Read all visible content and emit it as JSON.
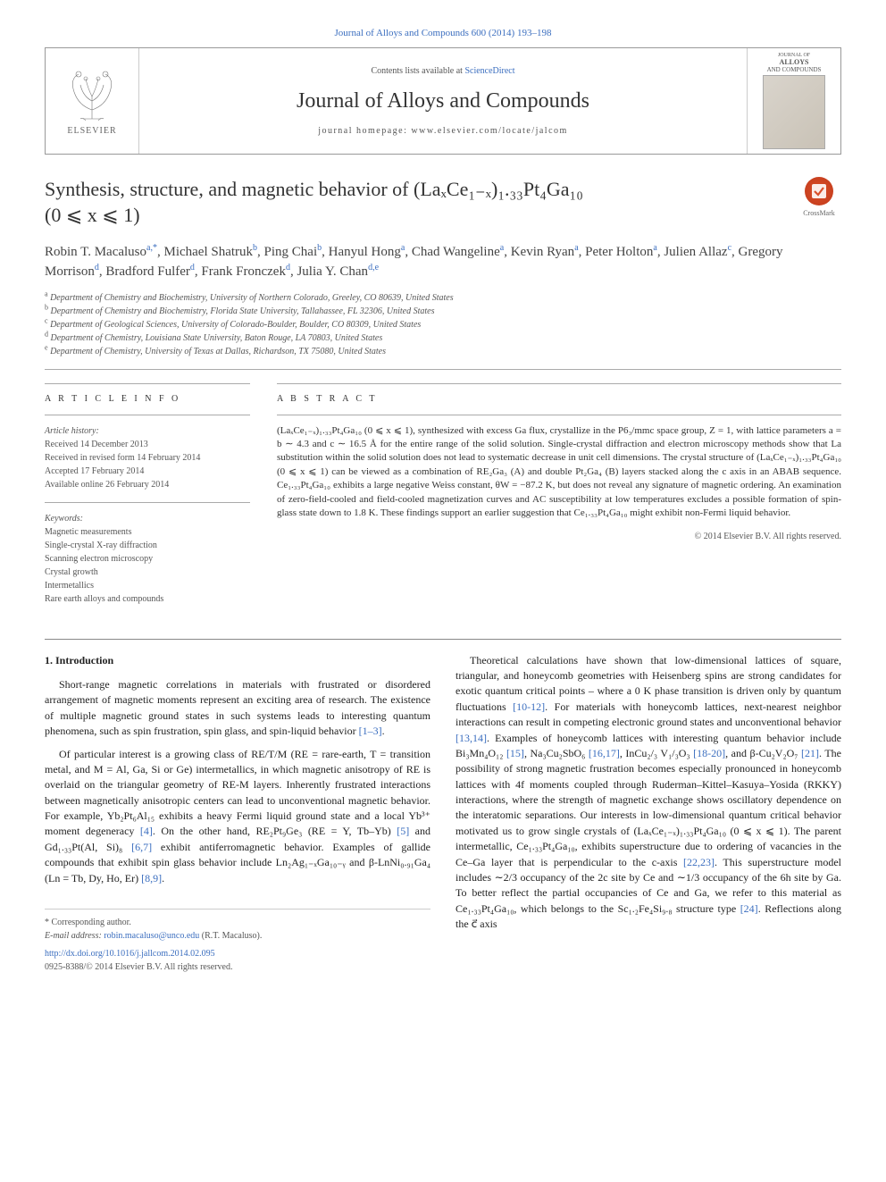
{
  "top_link": "Journal of Alloys and Compounds 600 (2014) 193–198",
  "header": {
    "elsevier": "ELSEVIER",
    "contents_prefix": "Contents lists available at ",
    "contents_link": "ScienceDirect",
    "journal_name": "Journal of Alloys and Compounds",
    "homepage_prefix": "journal homepage: ",
    "homepage_url": "www.elsevier.com/locate/jalcom",
    "cover_label_top": "JOURNAL OF",
    "cover_label_1": "ALLOYS",
    "cover_label_2": "AND COMPOUNDS"
  },
  "crossmark_label": "CrossMark",
  "title_line1": "Synthesis, structure, and magnetic behavior of (LaₓCe₁₋ₓ)₁.₃₃Pt₄Ga₁₀",
  "title_line2": "(0 ⩽ x ⩽ 1)",
  "authors_html": "Robin T. Macaluso<sup>a,*</sup>, Michael Shatruk<sup>b</sup>, Ping Chai<sup>b</sup>, Hanyul Hong<sup>a</sup>, Chad Wangeline<sup>a</sup>, Kevin Ryan<sup>a</sup>, Peter Holton<sup>a</sup>, Julien Allaz<sup>c</sup>, Gregory Morrison<sup>d</sup>, Bradford Fulfer<sup>d</sup>, Frank Fronczek<sup>d</sup>, Julia Y. Chan<sup>d,e</sup>",
  "affiliations": [
    "a Department of Chemistry and Biochemistry, University of Northern Colorado, Greeley, CO 80639, United States",
    "b Department of Chemistry and Biochemistry, Florida State University, Tallahassee, FL 32306, United States",
    "c Department of Geological Sciences, University of Colorado-Boulder, Boulder, CO 80309, United States",
    "d Department of Chemistry, Louisiana State University, Baton Rouge, LA 70803, United States",
    "e Department of Chemistry, University of Texas at Dallas, Richardson, TX 75080, United States"
  ],
  "article_info": {
    "heading": "A R T I C L E   I N F O",
    "history_label": "Article history:",
    "history": [
      "Received 14 December 2013",
      "Received in revised form 14 February 2014",
      "Accepted 17 February 2014",
      "Available online 26 February 2014"
    ],
    "keywords_label": "Keywords:",
    "keywords": [
      "Magnetic measurements",
      "Single-crystal X-ray diffraction",
      "Scanning electron microscopy",
      "Crystal growth",
      "Intermetallics",
      "Rare earth alloys and compounds"
    ]
  },
  "abstract": {
    "heading": "A B S T R A C T",
    "text": "(LaₓCe₁₋ₓ)₁.₃₃Pt₄Ga₁₀ (0 ⩽ x ⩽ 1), synthesized with excess Ga flux, crystallize in the P6₃/mmc space group, Z = 1, with lattice parameters a = b ∼ 4.3 and c ∼ 16.5 Å for the entire range of the solid solution. Single-crystal diffraction and electron microscopy methods show that La substitution within the solid solution does not lead to systematic decrease in unit cell dimensions. The crystal structure of (LaₓCe₁₋ₓ)₁.₃₃Pt₄Ga₁₀ (0 ⩽ x ⩽ 1) can be viewed as a combination of RE₂Ga₃ (A) and double Pt₂Ga₄ (B) layers stacked along the c axis in an ABAB sequence. Ce₁.₃₃Pt₄Ga₁₀ exhibits a large negative Weiss constant, θW = −87.2 K, but does not reveal any signature of magnetic ordering. An examination of zero-field-cooled and field-cooled magnetization curves and AC susceptibility at low temperatures excludes a possible formation of spin-glass state down to 1.8 K. These findings support an earlier suggestion that Ce₁.₃₃Pt₄Ga₁₀ might exhibit non-Fermi liquid behavior.",
    "copyright": "© 2014 Elsevier B.V. All rights reserved."
  },
  "intro_heading": "1. Introduction",
  "col1": {
    "p1": "Short-range magnetic correlations in materials with frustrated or disordered arrangement of magnetic moments represent an exciting area of research. The existence of multiple magnetic ground states in such systems leads to interesting quantum phenomena, such as spin frustration, spin glass, and spin-liquid behavior [1–3].",
    "p2": "Of particular interest is a growing class of RE/T/M (RE = rare-earth, T = transition metal, and M = Al, Ga, Si or Ge) intermetallics, in which magnetic anisotropy of RE is overlaid on the triangular geometry of RE-M layers. Inherently frustrated interactions between magnetically anisotropic centers can lead to unconventional magnetic behavior. For example, Yb₂Pt₆Al₁₅ exhibits a heavy Fermi liquid ground state and a local Yb³⁺ moment degeneracy [4]. On the other hand, RE₂Pt₉Ge₃ (RE = Y, Tb–Yb) [5] and Gd₁.₃₃Pt(Al, Si)₈ [6,7] exhibit antiferromagnetic behavior. Examples of gallide compounds that exhibit spin glass behavior include Ln₂Ag₁₋ₓGa₁₀₋ᵧ and β-LnNi₀.₉₁Ga₄ (Ln = Tb, Dy, Ho, Er) [8,9]."
  },
  "col2": {
    "p1": "Theoretical calculations have shown that low-dimensional lattices of square, triangular, and honeycomb geometries with Heisenberg spins are strong candidates for exotic quantum critical points – where a 0 K phase transition is driven only by quantum fluctuations [10-12]. For materials with honeycomb lattices, next-nearest neighbor interactions can result in competing electronic ground states and unconventional behavior [13,14]. Examples of honeycomb lattices with interesting quantum behavior include Bi₃Mn₄O₁₂ [15], Na₃Cu₂SbO₆ [16,17], InCu₂/₃ V₁/₃O₃ [18-20], and β-Cu₂V₂O₇ [21]. The possibility of strong magnetic frustration becomes especially pronounced in honeycomb lattices with 4f moments coupled through Ruderman–Kittel–Kasuya–Yosida (RKKY) interactions, where the strength of magnetic exchange shows oscillatory dependence on the interatomic separations. Our interests in low-dimensional quantum critical behavior motivated us to grow single crystals of (LaₓCe₁₋ₓ)₁.₃₃Pt₄Ga₁₀ (0 ⩽ x ⩽ 1). The parent intermetallic, Ce₁.₃₃Pt₄Ga₁₀, exhibits superstructure due to ordering of vacancies in the Ce–Ga layer that is perpendicular to the c-axis [22,23]. This superstructure model includes ∼2/3 occupancy of the 2c site by Ce and ∼1/3 occupancy of the 6h site by Ga. To better reflect the partial occupancies of Ce and Ga, we refer to this material as Ce₁.₃₃Pt₄Ga₁₀, which belongs to the Sc₁.₂Fe₄Si₉.₈ structure type [24]. Reflections along the c⃗ axis"
  },
  "footer": {
    "corresponding_label": "* Corresponding author.",
    "email_label": "E-mail address: ",
    "email": "robin.macaluso@unco.edu",
    "email_suffix": " (R.T. Macaluso).",
    "doi": "http://dx.doi.org/10.1016/j.jallcom.2014.02.095",
    "issn_line": "0925-8388/© 2014 Elsevier B.V. All rights reserved."
  },
  "colors": {
    "link": "#3b6ebf",
    "text": "#222222",
    "muted": "#555555",
    "rule": "#aaaaaa",
    "crossmark": "#d94f2a"
  }
}
